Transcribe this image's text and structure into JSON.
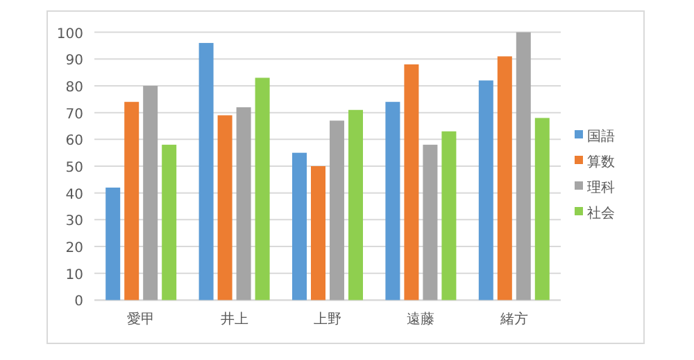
{
  "chart_data": {
    "type": "bar",
    "categories": [
      "愛甲",
      "井上",
      "上野",
      "遠藤",
      "緒方"
    ],
    "series": [
      {
        "name": "国語",
        "color": "#5b9bd5",
        "values": [
          42,
          96,
          55,
          74,
          82
        ]
      },
      {
        "name": "算数",
        "color": "#ed7d31",
        "values": [
          74,
          69,
          50,
          88,
          91
        ]
      },
      {
        "name": "理科",
        "color": "#a5a5a5",
        "values": [
          80,
          72,
          67,
          58,
          100
        ]
      },
      {
        "name": "社会",
        "color": "#8fcf4f",
        "values": [
          58,
          83,
          71,
          63,
          68
        ]
      }
    ],
    "ylim": [
      0,
      100
    ],
    "yticks": [
      0,
      10,
      20,
      30,
      40,
      50,
      60,
      70,
      80,
      90,
      100
    ],
    "grid": "y",
    "legend": "right"
  }
}
